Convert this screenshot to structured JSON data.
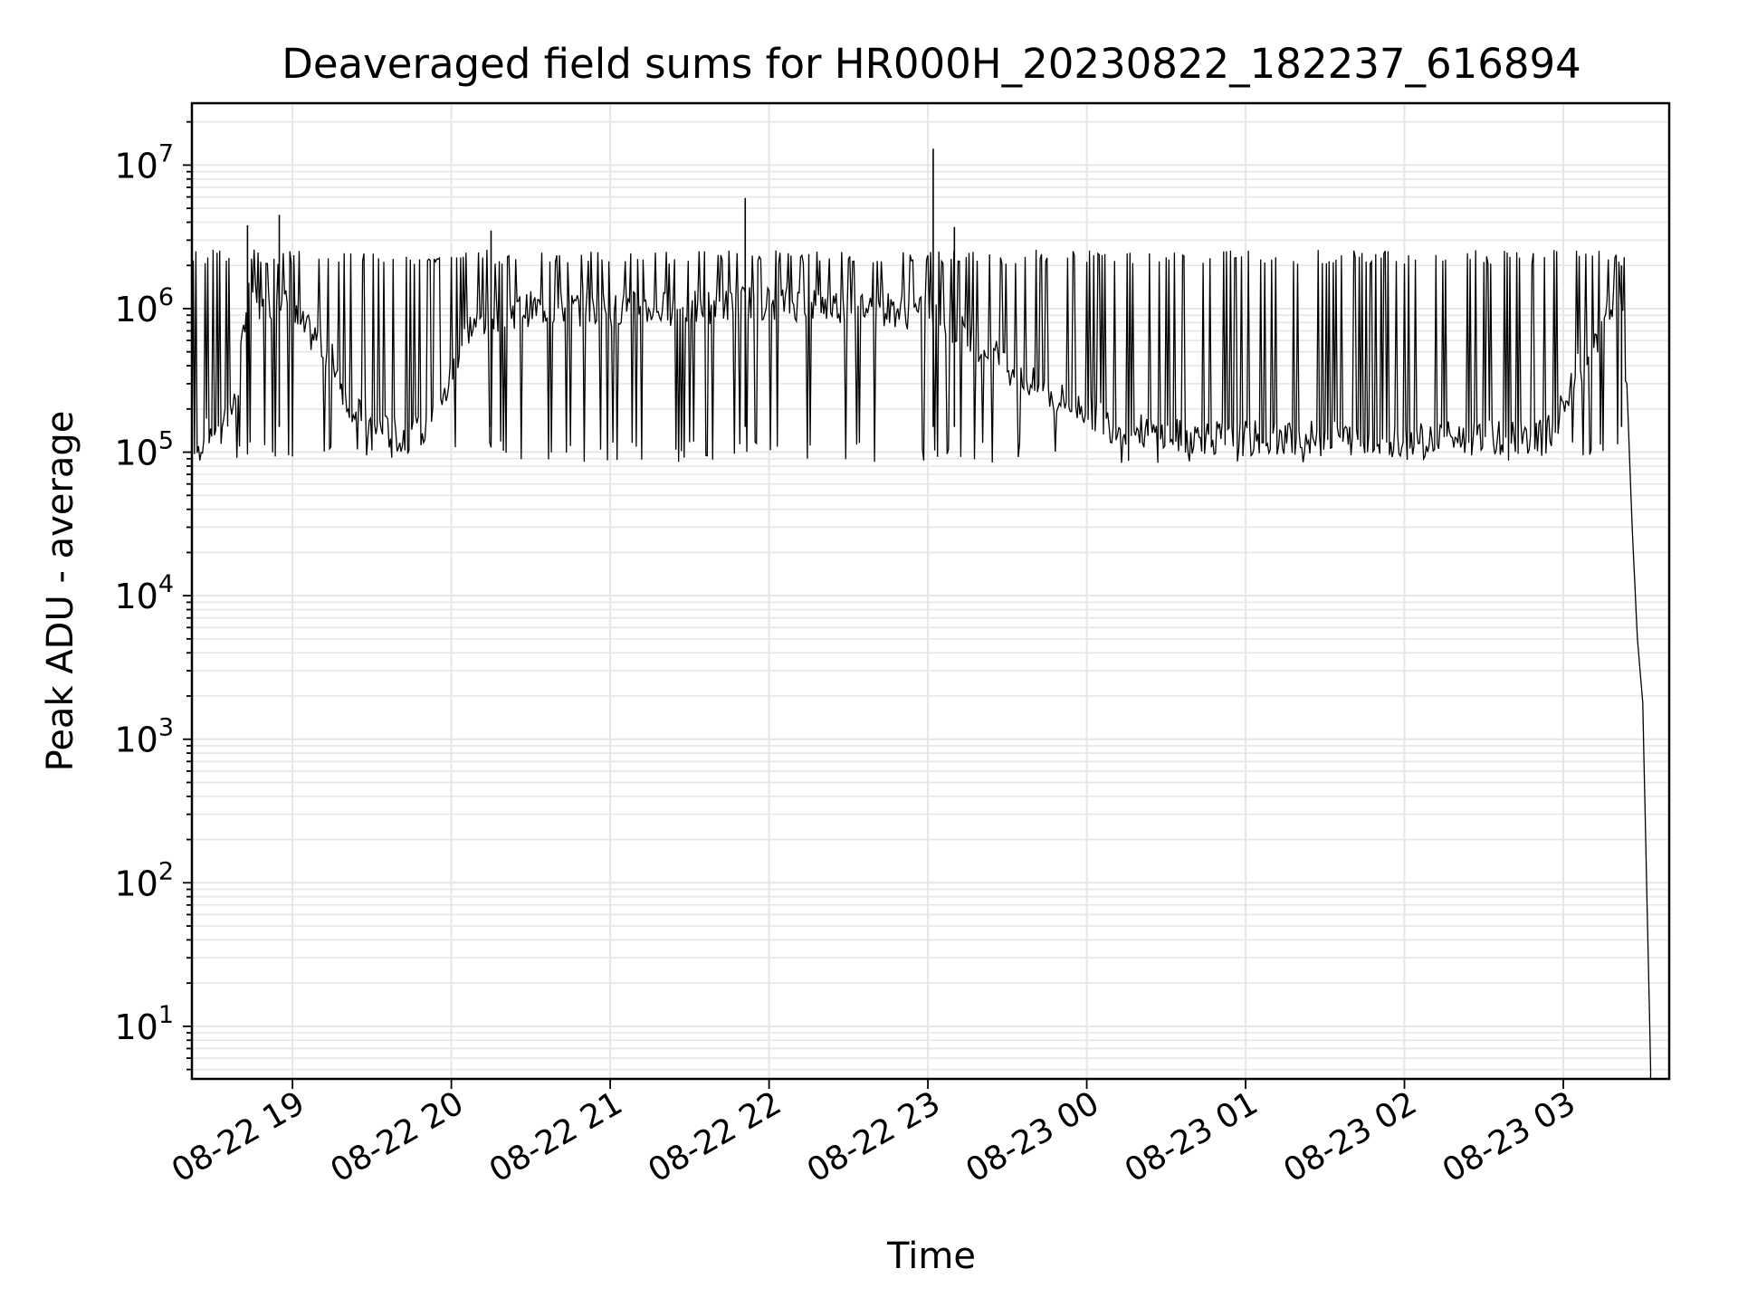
{
  "chart_data": {
    "type": "line",
    "title": "Deaveraged field sums for HR000H_20230822_182237_616894",
    "xlabel": "Time",
    "ylabel": "Peak ADU - average",
    "yscale": "log",
    "xlim": [
      "2023-08-22 18:22",
      "2023-08-23 03:40"
    ],
    "ylim": [
      4.3,
      27000000
    ],
    "grid": true,
    "x_ticks": [
      {
        "t": "2023-08-22 19:00",
        "label": "08-22 19"
      },
      {
        "t": "2023-08-22 20:00",
        "label": "08-22 20"
      },
      {
        "t": "2023-08-22 21:00",
        "label": "08-22 21"
      },
      {
        "t": "2023-08-22 22:00",
        "label": "08-22 22"
      },
      {
        "t": "2023-08-22 23:00",
        "label": "08-22 23"
      },
      {
        "t": "2023-08-23 00:00",
        "label": "08-23 00"
      },
      {
        "t": "2023-08-23 01:00",
        "label": "08-23 01"
      },
      {
        "t": "2023-08-23 02:00",
        "label": "08-23 02"
      },
      {
        "t": "2023-08-23 03:00",
        "label": "08-23 03"
      }
    ],
    "y_ticks": [
      {
        "v": 10,
        "base": "10",
        "exp": "1"
      },
      {
        "v": 100,
        "base": "10",
        "exp": "2"
      },
      {
        "v": 1000,
        "base": "10",
        "exp": "3"
      },
      {
        "v": 10000,
        "base": "10",
        "exp": "4"
      },
      {
        "v": 100000,
        "base": "10",
        "exp": "5"
      },
      {
        "v": 1000000,
        "base": "10",
        "exp": "6"
      },
      {
        "v": 10000000,
        "base": "10",
        "exp": "7"
      }
    ],
    "line_color": "#000000",
    "grid_color": "#e6e6e6",
    "series": [
      {
        "style": "black line",
        "x": [
          "2023-08-22 18:22",
          "2023-08-22 18:26",
          "2023-08-22 18:30",
          "2023-08-22 18:34",
          "2023-08-22 18:38",
          "2023-08-22 18:40",
          "2023-08-22 18:42",
          "2023-08-22 18:44",
          "2023-08-22 18:46",
          "2023-08-22 18:48",
          "2023-08-22 18:50",
          "2023-08-22 18:52",
          "2023-08-22 18:54",
          "2023-08-22 18:56",
          "2023-08-22 18:58",
          "2023-08-22 19:00",
          "2023-08-22 19:05",
          "2023-08-22 19:10",
          "2023-08-22 19:15",
          "2023-08-22 19:20",
          "2023-08-22 19:25",
          "2023-08-22 19:30",
          "2023-08-22 19:35",
          "2023-08-22 19:40",
          "2023-08-22 19:45",
          "2023-08-22 19:50",
          "2023-08-22 19:55",
          "2023-08-22 20:00",
          "2023-08-22 20:05",
          "2023-08-22 20:15",
          "2023-08-22 20:30",
          "2023-08-22 20:45",
          "2023-08-22 21:00",
          "2023-08-22 21:30",
          "2023-08-22 21:50",
          "2023-08-22 22:00",
          "2023-08-22 22:30",
          "2023-08-22 22:45",
          "2023-08-22 23:00",
          "2023-08-22 23:15",
          "2023-08-22 23:30",
          "2023-08-22 23:45",
          "2023-08-23 00:00",
          "2023-08-23 00:10",
          "2023-08-23 00:20",
          "2023-08-23 00:30",
          "2023-08-23 01:00",
          "2023-08-23 01:30",
          "2023-08-23 02:00",
          "2023-08-23 02:30",
          "2023-08-23 02:45",
          "2023-08-23 02:55",
          "2023-08-23 03:00",
          "2023-08-23 03:05",
          "2023-08-23 03:10",
          "2023-08-23 03:14",
          "2023-08-23 03:17",
          "2023-08-23 03:20",
          "2023-08-23 03:22",
          "2023-08-23 03:24",
          "2023-08-23 03:26",
          "2023-08-23 03:28",
          "2023-08-23 03:30",
          "2023-08-23 03:33"
        ],
        "y": [
          90000,
          120000,
          150000,
          180000,
          210000,
          350000,
          900000,
          1500000,
          1200000,
          900000,
          1000000,
          1100000,
          1300000,
          1200000,
          1000000,
          900000,
          700000,
          600000,
          450000,
          250000,
          180000,
          150000,
          140000,
          130000,
          130000,
          150000,
          170000,
          350000,
          700000,
          900000,
          1000000,
          1000000,
          1000000,
          1000000,
          1100000,
          1100000,
          1050000,
          1000000,
          900000,
          650000,
          400000,
          250000,
          200000,
          150000,
          140000,
          130000,
          125000,
          125000,
          125000,
          125000,
          125000,
          140000,
          200000,
          350000,
          500000,
          700000,
          900000,
          1200000,
          1000000,
          300000,
          30000,
          5000,
          1800,
          5
        ]
      }
    ],
    "spikes": [
      {
        "t": "2023-08-22 18:43",
        "y": 3800000
      },
      {
        "t": "2023-08-22 18:55",
        "y": 4500000
      },
      {
        "t": "2023-08-22 20:15",
        "y": 3500000
      },
      {
        "t": "2023-08-22 21:51",
        "y": 5900000
      },
      {
        "t": "2023-08-22 23:02",
        "y": 13000000
      },
      {
        "t": "2023-08-22 23:10",
        "y": 3700000
      },
      {
        "t": "2023-08-23 03:22",
        "y": 2000000
      }
    ]
  }
}
